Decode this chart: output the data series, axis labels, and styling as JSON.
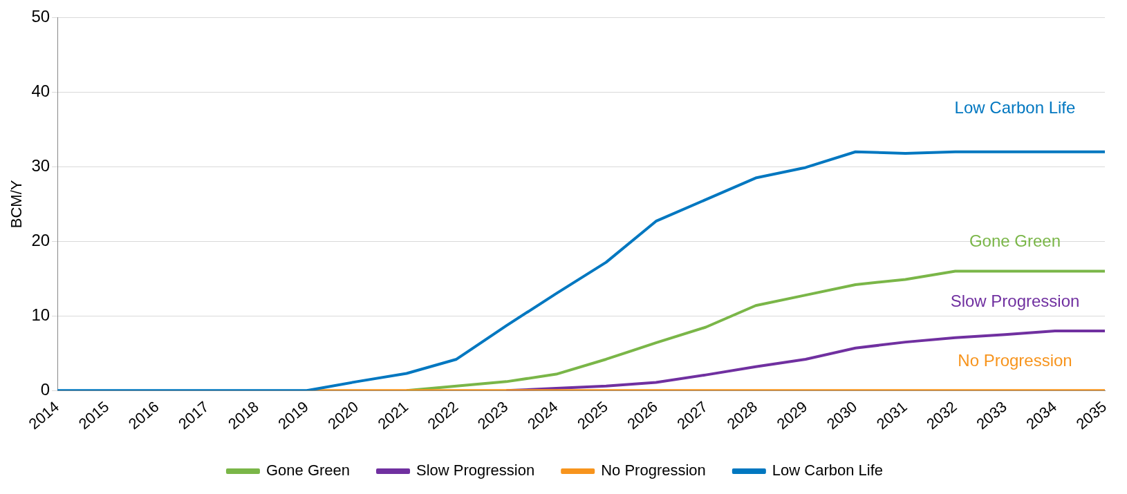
{
  "chart_data": {
    "type": "line",
    "ylabel": "BCM/Y",
    "categories": [
      "2014",
      "2015",
      "2016",
      "2017",
      "2018",
      "2019",
      "2020",
      "2021",
      "2022",
      "2023",
      "2024",
      "2025",
      "2026",
      "2027",
      "2028",
      "2029",
      "2030",
      "2031",
      "2032",
      "2033",
      "2034",
      "2035"
    ],
    "series": [
      {
        "name": "Gone Green",
        "color": "#7ab648",
        "values": [
          null,
          null,
          null,
          null,
          null,
          null,
          null,
          0,
          0.6,
          1.2,
          2.2,
          4.2,
          6.4,
          8.5,
          11.4,
          12.8,
          14.2,
          14.9,
          16,
          16,
          16,
          16
        ]
      },
      {
        "name": "Slow Progression",
        "color": "#7030a0",
        "values": [
          null,
          null,
          null,
          null,
          null,
          null,
          null,
          null,
          null,
          0,
          0.3,
          0.6,
          1.1,
          2.1,
          3.2,
          4.2,
          5.7,
          6.5,
          7.1,
          7.5,
          8,
          8
        ]
      },
      {
        "name": "No Progression",
        "color": "#f7941d",
        "values": [
          null,
          null,
          null,
          null,
          null,
          0,
          0,
          0,
          0,
          0,
          0,
          0,
          0,
          0,
          0,
          0,
          0,
          0,
          0,
          0,
          0,
          0
        ]
      },
      {
        "name": "Low Carbon Life",
        "color": "#0077c0",
        "values": [
          0,
          0,
          0,
          0,
          0,
          0,
          1.2,
          2.3,
          4.2,
          8.7,
          13,
          17.2,
          22.7,
          25.6,
          28.5,
          29.9,
          32,
          31.8,
          32,
          32,
          32,
          32
        ]
      }
    ],
    "ylim": [
      0,
      50
    ],
    "yticks": [
      0,
      10,
      20,
      30,
      40,
      50
    ],
    "grid": "y",
    "legend": "bottom",
    "marker": "none",
    "line_style": "solid"
  }
}
